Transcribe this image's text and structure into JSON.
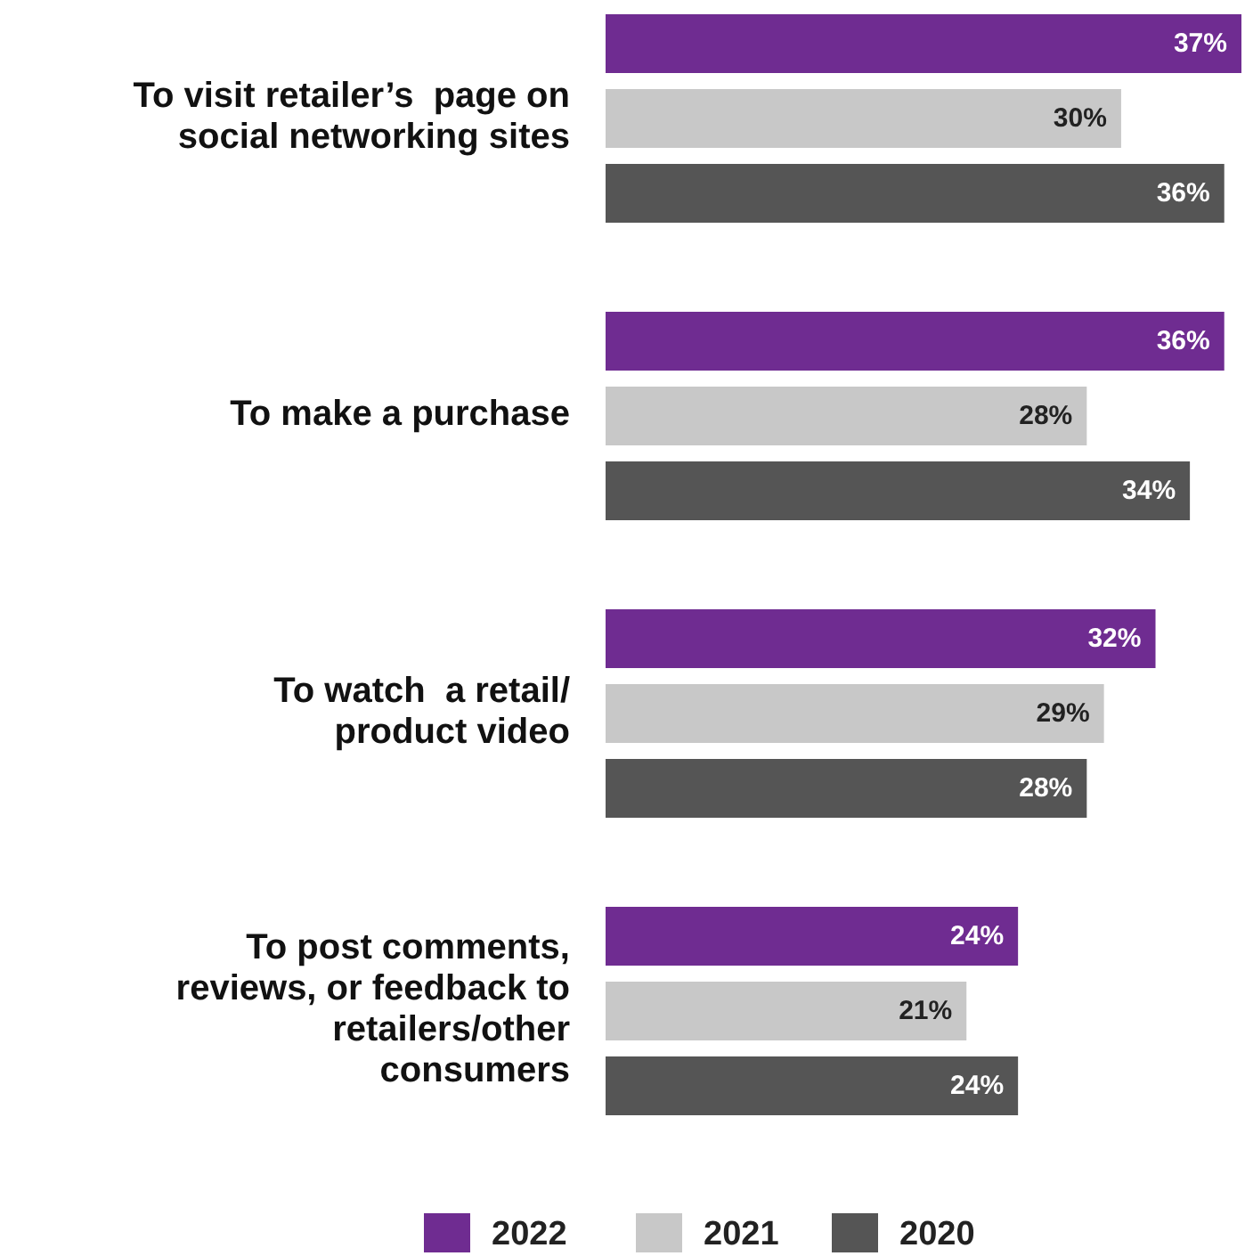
{
  "chart_data": {
    "type": "bar",
    "orientation": "horizontal",
    "categories": [
      "To visit retailer’s  page on\nsocial networking sites",
      "To make a purchase",
      "To watch  a retail/\nproduct video",
      "To post comments,\nreviews, or feedback to\nretailers/other\nconsumers"
    ],
    "series": [
      {
        "name": "2022",
        "color": "#6f2c91",
        "values": [
          37,
          36,
          32,
          24
        ],
        "value_labels": [
          "37%",
          "36%",
          "32%",
          "24%"
        ]
      },
      {
        "name": "2021",
        "color": "#c8c8c8",
        "values": [
          30,
          28,
          29,
          21
        ],
        "value_labels": [
          "30%",
          "28%",
          "29%",
          "21%"
        ]
      },
      {
        "name": "2020",
        "color": "#555555",
        "values": [
          36,
          34,
          28,
          24
        ],
        "value_labels": [
          "36%",
          "34%",
          "28%",
          "24%"
        ]
      }
    ],
    "legend": "bottom"
  }
}
